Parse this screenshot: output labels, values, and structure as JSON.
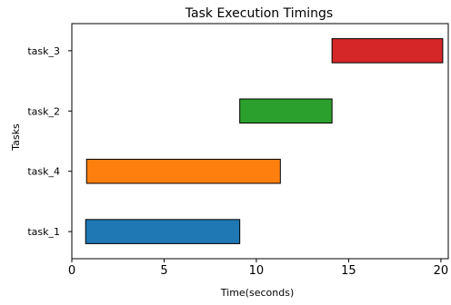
{
  "chart_data": {
    "type": "bar",
    "orientation": "horizontal",
    "title": "Task Execution Timings",
    "xlabel": "Time(seconds)",
    "ylabel": "Tasks",
    "xlim": [
      0,
      20.4
    ],
    "xticks": [
      0,
      5,
      10,
      15,
      20
    ],
    "categories": [
      "task_1",
      "task_4",
      "task_2",
      "task_3"
    ],
    "tasks": [
      {
        "name": "task_1",
        "start": 0.75,
        "end": 9.1,
        "color": "#1f77b4"
      },
      {
        "name": "task_4",
        "start": 0.8,
        "end": 11.3,
        "color": "#ff7f0e"
      },
      {
        "name": "task_2",
        "start": 9.1,
        "end": 14.1,
        "color": "#2ca02c"
      },
      {
        "name": "task_3",
        "start": 14.1,
        "end": 20.1,
        "color": "#d62728"
      }
    ],
    "grid": false,
    "legend": "none"
  }
}
